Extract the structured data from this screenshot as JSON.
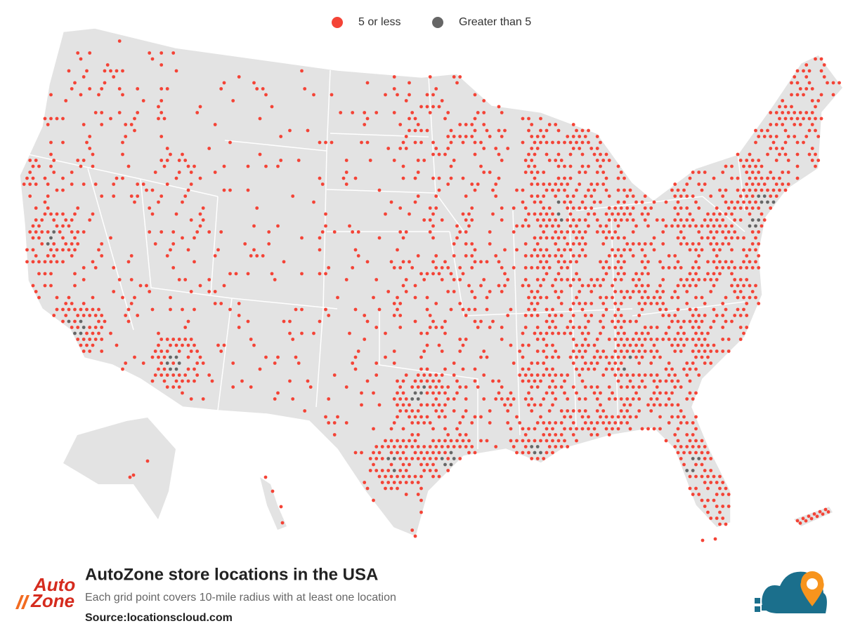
{
  "legend": [
    {
      "label": "5 or less",
      "color": "#f44336"
    },
    {
      "label": "Greater than 5",
      "color": "#666666"
    }
  ],
  "title": "AutoZone store locations in the USA",
  "subtitle": "Each grid point covers 10-mile radius with at least one location",
  "source": "Source:locationscloud.com",
  "logo": {
    "line1": "Auto",
    "line2": "Zone"
  }
}
